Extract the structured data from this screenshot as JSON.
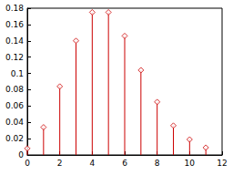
{
  "chart_data": {
    "type": "stem",
    "x": [
      0,
      1,
      2,
      3,
      4,
      5,
      6,
      7,
      8,
      9,
      10,
      11
    ],
    "values": [
      0.008,
      0.034,
      0.084,
      0.14,
      0.175,
      0.175,
      0.146,
      0.104,
      0.065,
      0.036,
      0.019,
      0.009
    ],
    "color": "#cc0000",
    "marker": "diamond",
    "xlim": [
      0,
      12
    ],
    "xticks": [
      0,
      2,
      4,
      6,
      8,
      10,
      12
    ],
    "ylim": [
      0,
      0.18
    ],
    "yticks": [
      0,
      0.02,
      0.04,
      0.06,
      0.08,
      0.1,
      0.12,
      0.14,
      0.16,
      0.18
    ],
    "grid": false
  }
}
